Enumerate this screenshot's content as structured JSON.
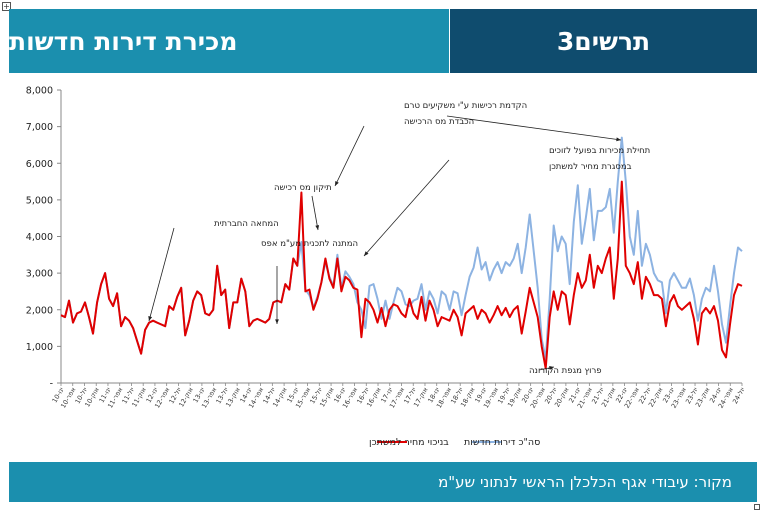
{
  "header": {
    "title": "מכירת דירות חדשות",
    "chart_number_label": "תרשים3"
  },
  "footer": {
    "source": "מקור: עיבודי אגף הכלכלן הראשי לנתוני שע\"מ"
  },
  "colors": {
    "header_left": "#1b8fae",
    "header_right": "#0f4c6e",
    "series_total": "#8db3e2",
    "series_mortgage": "#e00000"
  },
  "chart_data": {
    "type": "line",
    "title": "",
    "xlabel": "",
    "ylabel": "",
    "ylim": [
      0,
      8000
    ],
    "yticks": [
      0,
      1000,
      2000,
      3000,
      4000,
      5000,
      6000,
      7000,
      8000
    ],
    "ytick_labels": [
      "-",
      "1,000",
      "2,000",
      "3,000",
      "4,000",
      "5,000",
      "6,000",
      "7,000",
      "8,000"
    ],
    "grid": false,
    "legend_position": "bottom",
    "x_tick_labels": [
      "10-ינו",
      "10-אפר",
      "10-יול",
      "10-אוק",
      "11-ינו",
      "11-אפר",
      "11-יול",
      "11-אוק",
      "12-ינו",
      "12-אפר",
      "12-יול",
      "12-אוק",
      "13-ינו",
      "13-אפר",
      "13-יול",
      "13-אוק",
      "14-ינו",
      "14-אפר",
      "14-יול",
      "14-אוק",
      "15-ינו",
      "15-אפר",
      "15-יול",
      "15-אוק",
      "16-ינו",
      "16-אפר",
      "16-יול",
      "16-אוק",
      "17-ינו",
      "17-אפר",
      "17-יול",
      "17-אוק",
      "18-ינו",
      "18-אפר",
      "18-יול",
      "18-אוק",
      "19-ינו",
      "19-אפר",
      "19-יול",
      "19-אוק",
      "20-ינו",
      "20-אפר",
      "20-יול",
      "20-אוק",
      "21-ינו",
      "21-אפר",
      "21-יול",
      "21-אוק",
      "22-ינו",
      "22-אפר",
      "22-יול",
      "22-אוק",
      "23-ינו",
      "23-אפר",
      "23-יול",
      "23-אוק",
      "24-ינו",
      "24-אפר",
      "24-יול"
    ],
    "series": [
      {
        "name": "סה\"כ דירות חדשות",
        "values": [
          1850,
          1800,
          2250,
          1650,
          1900,
          1950,
          2200,
          1800,
          1350,
          2200,
          2700,
          3000,
          2300,
          2100,
          2450,
          1550,
          1800,
          1700,
          1500,
          1150,
          800,
          1450,
          1650,
          1700,
          1650,
          1600,
          1550,
          2100,
          2000,
          2350,
          2600,
          1300,
          1700,
          2250,
          2500,
          2400,
          1900,
          1850,
          2000,
          3200,
          2400,
          2550,
          1500,
          2200,
          2200,
          2850,
          2500,
          1550,
          1700,
          1750,
          1700,
          1650,
          1750,
          2200,
          2250,
          2200,
          2700,
          2550,
          3400,
          3200,
          3850,
          2550,
          2400,
          2050,
          2350,
          2750,
          3300,
          2900,
          2650,
          3500,
          2600,
          3050,
          2900,
          2700,
          2200,
          2000,
          1500,
          2650,
          2700,
          2300,
          1750,
          2250,
          1750,
          2200,
          2600,
          2500,
          2150,
          2100,
          2250,
          2300,
          2700,
          2000,
          2500,
          2300,
          1900,
          2500,
          2400,
          2000,
          2500,
          2450,
          1850,
          2400,
          2900,
          3150,
          3700,
          3100,
          3300,
          2800,
          3100,
          3300,
          3000,
          3300,
          3200,
          3400,
          3800,
          3000,
          3700,
          4600,
          3600,
          2600,
          1200,
          650,
          2300,
          4300,
          3600,
          4000,
          3800,
          2700,
          4400,
          5400,
          3800,
          4500,
          5300,
          3900,
          4700,
          4700,
          4800,
          5300,
          4100,
          5500,
          6700,
          5500,
          4000,
          3500,
          4700,
          3200,
          3800,
          3500,
          3000,
          2800,
          2750,
          1900,
          2800,
          3000,
          2800,
          2600,
          2600,
          2850,
          2400,
          1700,
          2300,
          2600,
          2500,
          3200,
          2500,
          1600,
          1100,
          2100,
          3000,
          3700,
          3600
        ]
      },
      {
        "name": "בניכוי מחיר למשתכן",
        "values": [
          1850,
          1800,
          2250,
          1650,
          1900,
          1950,
          2200,
          1800,
          1350,
          2200,
          2700,
          3000,
          2300,
          2100,
          2450,
          1550,
          1800,
          1700,
          1500,
          1150,
          800,
          1450,
          1650,
          1700,
          1650,
          1600,
          1550,
          2100,
          2000,
          2350,
          2600,
          1300,
          1700,
          2250,
          2500,
          2400,
          1900,
          1850,
          2000,
          3200,
          2400,
          2550,
          1500,
          2200,
          2200,
          2850,
          2500,
          1550,
          1700,
          1750,
          1700,
          1650,
          1750,
          2200,
          2250,
          2200,
          2700,
          2550,
          3400,
          3200,
          5200,
          2500,
          2550,
          2000,
          2300,
          2750,
          3400,
          2850,
          2600,
          3400,
          2500,
          2900,
          2800,
          2600,
          2550,
          1250,
          2300,
          2200,
          2000,
          1650,
          2050,
          1550,
          2000,
          2150,
          2100,
          1900,
          1800,
          2300,
          1900,
          1750,
          2350,
          1700,
          2250,
          2000,
          1550,
          1800,
          1750,
          1700,
          2000,
          1800,
          1300,
          1900,
          2000,
          2100,
          1750,
          2000,
          1900,
          1650,
          1850,
          2100,
          1850,
          2050,
          1800,
          2000,
          2100,
          1350,
          1950,
          2600,
          2200,
          1800,
          1000,
          400,
          1800,
          2500,
          2000,
          2500,
          2400,
          1600,
          2400,
          3000,
          2600,
          2800,
          3500,
          2600,
          3200,
          3000,
          3400,
          3700,
          2300,
          3400,
          5500,
          3200,
          3000,
          2700,
          3300,
          2300,
          2900,
          2700,
          2400,
          2400,
          2300,
          1550,
          2200,
          2400,
          2100,
          2000,
          2100,
          2200,
          1750,
          1050,
          1900,
          2050,
          1900,
          2100,
          1700,
          900,
          700,
          1600,
          2400,
          2700,
          2650
        ]
      }
    ],
    "annotations": [
      {
        "text": "המחאה החברתית"
      },
      {
        "text": "המתנה לתכנית מע\"מ אפס"
      },
      {
        "text": "תיקון מס רכישה"
      },
      {
        "text": "הקדמת רכישות ע\"י משקיעים טרם"
      },
      {
        "text": "הכבדת מס הרכישה"
      },
      {
        "text": "תחילת מכירות בפועל לזוכים"
      },
      {
        "text": "במסגרת מחיר למשתכן"
      },
      {
        "text": "פרוץ מגפת הקורונה"
      }
    ]
  }
}
